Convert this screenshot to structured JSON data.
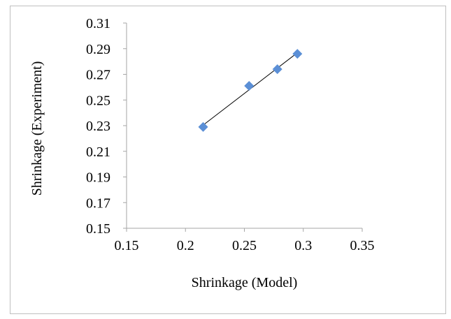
{
  "chart_data": {
    "type": "scatter",
    "title": "",
    "xlabel": "Shrinkage (Model)",
    "ylabel": "Shrinkage (Experiment)",
    "xlim": [
      0.15,
      0.35
    ],
    "ylim": [
      0.15,
      0.31
    ],
    "x_ticks": [
      "0.15",
      "0.2",
      "0.25",
      "0.3",
      "0.35"
    ],
    "y_ticks": [
      "0.15",
      "0.17",
      "0.19",
      "0.21",
      "0.23",
      "0.25",
      "0.27",
      "0.29",
      "0.31"
    ],
    "grid": false,
    "legend": "none",
    "series": [
      {
        "points": [
          {
            "x": 0.215,
            "y": 0.229
          },
          {
            "x": 0.254,
            "y": 0.261
          },
          {
            "x": 0.278,
            "y": 0.274
          },
          {
            "x": 0.295,
            "y": 0.286
          }
        ],
        "color": "#5b8fd6"
      }
    ],
    "trendline": {
      "type": "linear",
      "x_range": [
        0.215,
        0.295
      ],
      "color": "#000000"
    }
  }
}
